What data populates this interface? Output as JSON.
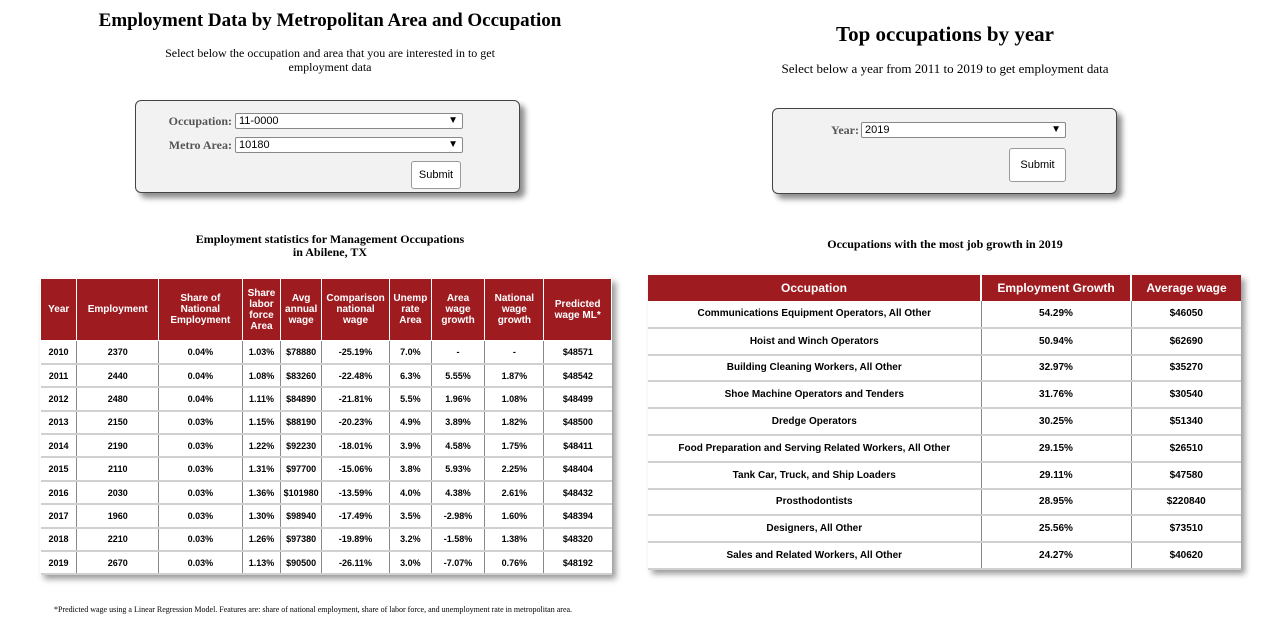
{
  "left": {
    "title": "Employment Data by Metropolitan Area and Occupation",
    "subtitle": "Select below the occupation and area that you are interested in to get employment data",
    "form": {
      "occupation_label": "Occupation:",
      "occupation_value": "11-0000",
      "metro_label": "Metro Area:",
      "metro_value": "10180",
      "submit_label": "Submit"
    },
    "table_caption_line1": "Employment statistics for Management Occupations",
    "table_caption_line2": "in Abilene, TX",
    "columns": [
      "Year",
      "Employment",
      "Share of National Employment",
      "Share labor force Area",
      "Avg annual wage",
      "Comparison national wage",
      "Unemp rate Area",
      "Area wage growth",
      "National wage growth",
      "Predicted wage ML*"
    ],
    "rows": [
      [
        "2010",
        "2370",
        "0.04%",
        "1.03%",
        "$78880",
        "-25.19%",
        "7.0%",
        "-",
        "-",
        "$48571"
      ],
      [
        "2011",
        "2440",
        "0.04%",
        "1.08%",
        "$83260",
        "-22.48%",
        "6.3%",
        "5.55%",
        "1.87%",
        "$48542"
      ],
      [
        "2012",
        "2480",
        "0.04%",
        "1.11%",
        "$84890",
        "-21.81%",
        "5.5%",
        "1.96%",
        "1.08%",
        "$48499"
      ],
      [
        "2013",
        "2150",
        "0.03%",
        "1.15%",
        "$88190",
        "-20.23%",
        "4.9%",
        "3.89%",
        "1.82%",
        "$48500"
      ],
      [
        "2014",
        "2190",
        "0.03%",
        "1.22%",
        "$92230",
        "-18.01%",
        "3.9%",
        "4.58%",
        "1.75%",
        "$48411"
      ],
      [
        "2015",
        "2110",
        "0.03%",
        "1.31%",
        "$97700",
        "-15.06%",
        "3.8%",
        "5.93%",
        "2.25%",
        "$48404"
      ],
      [
        "2016",
        "2030",
        "0.03%",
        "1.36%",
        "$101980",
        "-13.59%",
        "4.0%",
        "4.38%",
        "2.61%",
        "$48432"
      ],
      [
        "2017",
        "1960",
        "0.03%",
        "1.30%",
        "$98940",
        "-17.49%",
        "3.5%",
        "-2.98%",
        "1.60%",
        "$48394"
      ],
      [
        "2018",
        "2210",
        "0.03%",
        "1.26%",
        "$97380",
        "-19.89%",
        "3.2%",
        "-1.58%",
        "1.38%",
        "$48320"
      ],
      [
        "2019",
        "2670",
        "0.03%",
        "1.13%",
        "$90500",
        "-26.11%",
        "3.0%",
        "-7.07%",
        "0.76%",
        "$48192"
      ]
    ],
    "footnote": "*Predicted wage using a Linear Regression Model. Features are: share of national employment, share of labor force, and unemployment rate in metropolitan area."
  },
  "right": {
    "title": "Top occupations by year",
    "subtitle": "Select below a year from 2011 to 2019 to get employment data",
    "form": {
      "year_label": "Year:",
      "year_value": "2019",
      "submit_label": "Submit"
    },
    "table_caption": "Occupations with the most job growth in 2019",
    "columns": [
      "Occupation",
      "Employment Growth",
      "Average wage"
    ],
    "rows": [
      [
        "Communications Equipment Operators, All Other",
        "54.29%",
        "$46050"
      ],
      [
        "Hoist and Winch Operators",
        "50.94%",
        "$62690"
      ],
      [
        "Building Cleaning Workers, All Other",
        "32.97%",
        "$35270"
      ],
      [
        "Shoe Machine Operators and Tenders",
        "31.76%",
        "$30540"
      ],
      [
        "Dredge Operators",
        "30.25%",
        "$51340"
      ],
      [
        "Food Preparation and Serving Related Workers, All Other",
        "29.15%",
        "$26510"
      ],
      [
        "Tank Car, Truck, and Ship Loaders",
        "29.11%",
        "$47580"
      ],
      [
        "Prosthodontists",
        "28.95%",
        "$220840"
      ],
      [
        "Designers, All Other",
        "25.56%",
        "$73510"
      ],
      [
        "Sales and Related Workers, All Other",
        "24.27%",
        "$40620"
      ]
    ]
  },
  "colors": {
    "header_bg": "#9e1b20",
    "header_text": "#ffffff"
  },
  "icons": {
    "dropdown": "caret-down-icon"
  }
}
